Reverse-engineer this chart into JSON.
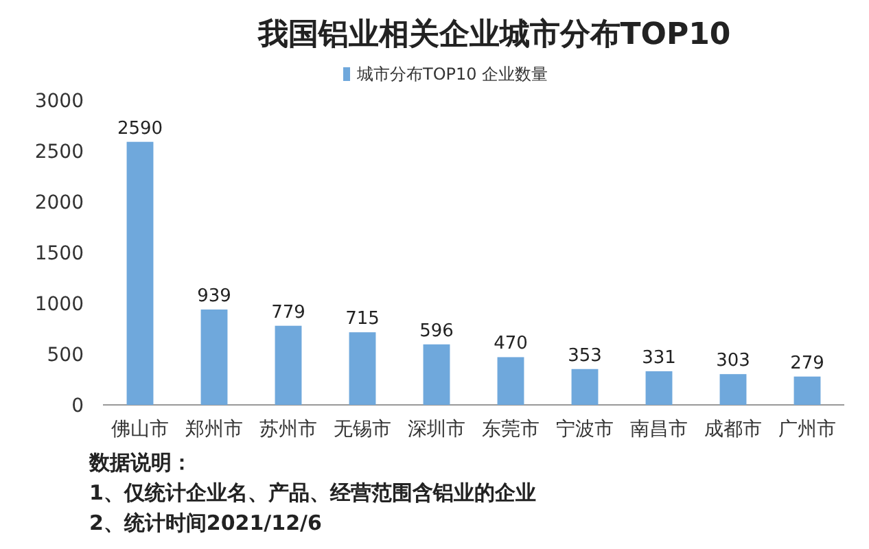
{
  "chart_data": {
    "type": "bar",
    "title": "我国铝业相关企业城市分布TOP10",
    "categories": [
      "佛山市",
      "郑州市",
      "苏州市",
      "无锡市",
      "深圳市",
      "东莞市",
      "宁波市",
      "南昌市",
      "成都市",
      "广州市"
    ],
    "series": [
      {
        "name": "城市分布TOP10 企业数量",
        "color": "#6fa8dc",
        "values": [
          2590,
          939,
          779,
          715,
          596,
          470,
          353,
          331,
          303,
          279
        ]
      }
    ],
    "ylim": [
      0,
      3000
    ],
    "yticks": [
      0,
      500,
      1000,
      1500,
      2000,
      2500,
      3000
    ],
    "grid": false,
    "legend": "top",
    "data_labels": true,
    "annotations": [
      "数据说明：",
      "1、仅统计企业名、产品、经营范围含铝业的企业",
      "2、统计时间2021/12/6"
    ]
  }
}
